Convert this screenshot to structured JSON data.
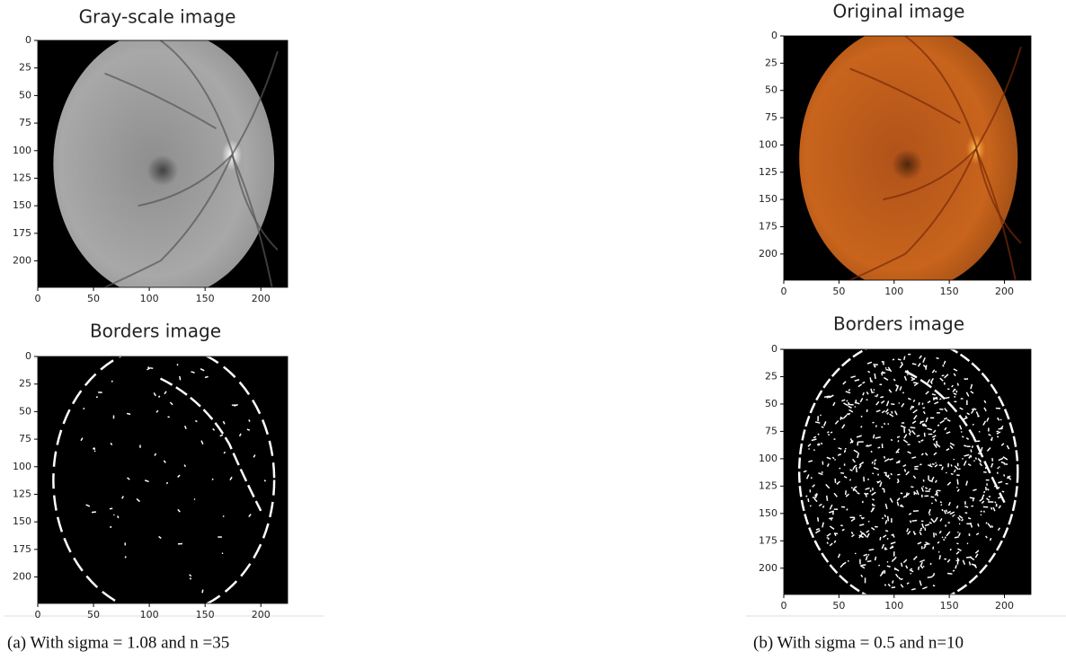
{
  "panels": [
    {
      "title": "Gray-scale image",
      "xlim": [
        0,
        224
      ],
      "ylim": [
        0,
        224
      ],
      "xticks": [
        0,
        50,
        100,
        150,
        200
      ],
      "yticks": [
        0,
        25,
        50,
        75,
        100,
        125,
        150,
        175,
        200
      ]
    },
    {
      "title": "Borders image",
      "xlim": [
        0,
        224
      ],
      "ylim": [
        0,
        224
      ],
      "xticks": [
        0,
        50,
        100,
        150,
        200
      ],
      "yticks": [
        0,
        25,
        50,
        75,
        100,
        125,
        150,
        175,
        200
      ]
    },
    {
      "title": "Original image",
      "xlim": [
        0,
        224
      ],
      "ylim": [
        0,
        224
      ],
      "xticks": [
        0,
        50,
        100,
        150,
        200
      ],
      "yticks": [
        0,
        25,
        50,
        75,
        100,
        125,
        150,
        175,
        200
      ]
    },
    {
      "title": "Borders image",
      "xlim": [
        0,
        224
      ],
      "ylim": [
        0,
        224
      ],
      "xticks": [
        0,
        50,
        100,
        150,
        200
      ],
      "yticks": [
        0,
        25,
        50,
        75,
        100,
        125,
        150,
        175,
        200
      ]
    }
  ],
  "captions": [
    "(a) With sigma = 1.08 and n =35",
    "(b) With sigma = 0.5 and n=10"
  ]
}
